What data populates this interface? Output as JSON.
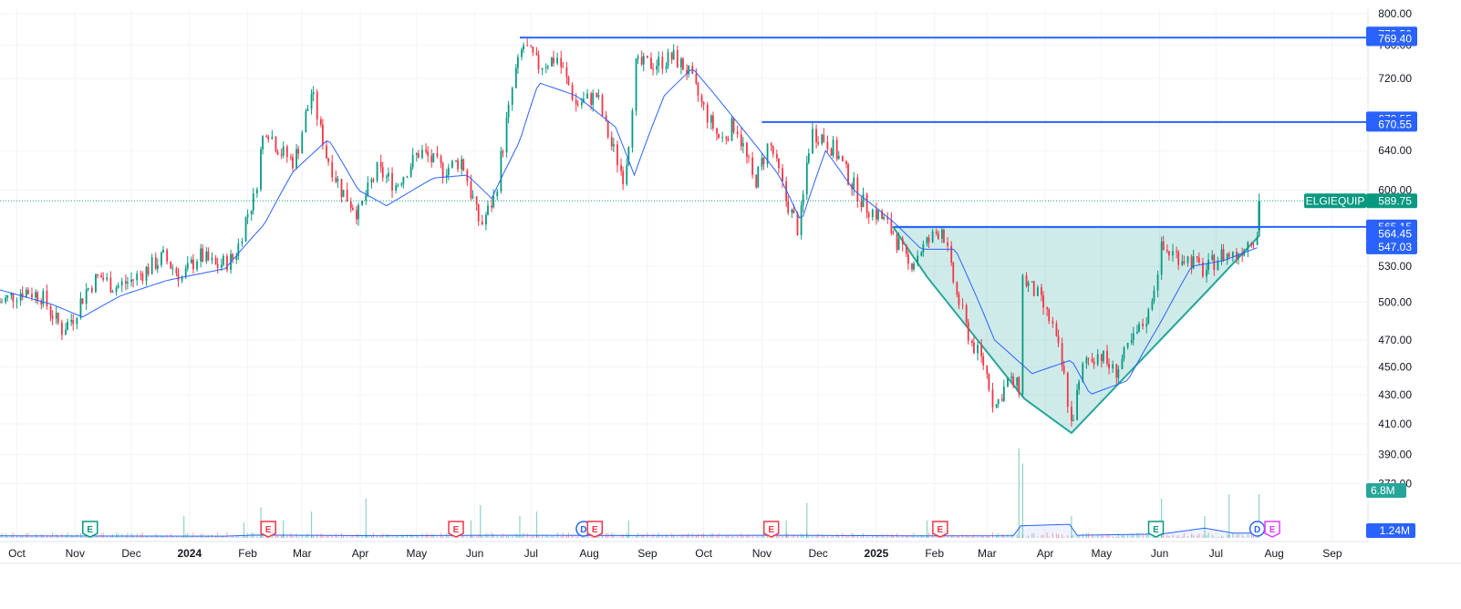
{
  "chart_data": {
    "type": "candlestick",
    "symbol": "ELGIEQUIP",
    "last_price": "589.75",
    "y_axis": {
      "scale": "log",
      "range": [
        356,
        806
      ],
      "ticks": [
        "800.00",
        "760.00",
        "720.00",
        "640.00",
        "600.00",
        "530.00",
        "500.00",
        "470.00",
        "450.00",
        "430.00",
        "410.00",
        "390.00",
        "372.00"
      ]
    },
    "x_axis": {
      "range": [
        "2023-09-22",
        "2025-09-20"
      ],
      "ticks": [
        {
          "label": "Oct",
          "date": "2023-10-01",
          "bold": false
        },
        {
          "label": "Nov",
          "date": "2023-11-01",
          "bold": false
        },
        {
          "label": "Dec",
          "date": "2023-12-01",
          "bold": false
        },
        {
          "label": "2024",
          "date": "2024-01-01",
          "bold": true
        },
        {
          "label": "Feb",
          "date": "2024-02-01",
          "bold": false
        },
        {
          "label": "Mar",
          "date": "2024-03-01",
          "bold": false
        },
        {
          "label": "Apr",
          "date": "2024-04-01",
          "bold": false
        },
        {
          "label": "May",
          "date": "2024-05-01",
          "bold": false
        },
        {
          "label": "Jun",
          "date": "2024-06-01",
          "bold": false
        },
        {
          "label": "Jul",
          "date": "2024-07-01",
          "bold": false
        },
        {
          "label": "Aug",
          "date": "2024-08-01",
          "bold": false
        },
        {
          "label": "Sep",
          "date": "2024-09-01",
          "bold": false
        },
        {
          "label": "Oct",
          "date": "2024-10-01",
          "bold": false
        },
        {
          "label": "Nov",
          "date": "2024-11-01",
          "bold": false
        },
        {
          "label": "Dec",
          "date": "2024-12-01",
          "bold": false
        },
        {
          "label": "2025",
          "date": "2025-01-01",
          "bold": true
        },
        {
          "label": "Feb",
          "date": "2025-02-01",
          "bold": false
        },
        {
          "label": "Mar",
          "date": "2025-03-01",
          "bold": false
        },
        {
          "label": "Apr",
          "date": "2025-04-01",
          "bold": false
        },
        {
          "label": "May",
          "date": "2025-05-01",
          "bold": false
        },
        {
          "label": "Jun",
          "date": "2025-06-01",
          "bold": false
        },
        {
          "label": "Jul",
          "date": "2025-07-01",
          "bold": false
        },
        {
          "label": "Aug",
          "date": "2025-08-01",
          "bold": false
        },
        {
          "label": "Sep",
          "date": "2025-09-01",
          "bold": false
        }
      ]
    },
    "price_tags": [
      {
        "label": "770.50",
        "value": 774,
        "color": "#2962ff"
      },
      {
        "label": "769.40",
        "value": 768,
        "color": "#2962ff"
      },
      {
        "label": "670.55",
        "value": 674,
        "color": "#2962ff"
      },
      {
        "label": "670.55",
        "value": 668,
        "color": "#2962ff"
      },
      {
        "label": "565.15",
        "value": 565.15,
        "color": "#2962ff"
      },
      {
        "label": "564.45",
        "value": 559,
        "color": "#2962ff"
      },
      {
        "label": "547.03",
        "value": 547.03,
        "color": "#2962ff"
      }
    ],
    "horizontal_lines": [
      {
        "value": 769.4,
        "from": "2024-06-25",
        "color": "#2962ff"
      },
      {
        "value": 670.55,
        "from": "2024-11-01",
        "color": "#2962ff"
      },
      {
        "value": 565.15,
        "from": "2025-01-10",
        "color": "#2962ff"
      }
    ],
    "pattern": {
      "color": "#26a69a",
      "fill": "rgba(38,166,154,0.22)",
      "points": [
        {
          "date": "2025-01-10",
          "value": 565
        },
        {
          "date": "2025-01-28",
          "value": 521
        },
        {
          "date": "2025-03-21",
          "value": 427
        },
        {
          "date": "2025-04-15",
          "value": 404
        },
        {
          "date": "2025-06-25",
          "value": 507
        },
        {
          "date": "2025-07-24",
          "value": 557
        },
        {
          "date": "2025-07-24",
          "value": 565
        }
      ]
    },
    "price_path": [
      [
        "2023-09-22",
        500
      ],
      [
        "2023-10-05",
        510
      ],
      [
        "2023-10-14",
        505
      ],
      [
        "2023-10-20",
        490
      ],
      [
        "2023-10-25",
        478
      ],
      [
        "2023-10-31",
        488
      ],
      [
        "2023-11-07",
        510
      ],
      [
        "2023-11-14",
        522
      ],
      [
        "2023-11-22",
        512
      ],
      [
        "2023-12-01",
        518
      ],
      [
        "2023-12-10",
        528
      ],
      [
        "2023-12-18",
        538
      ],
      [
        "2023-12-28",
        520
      ],
      [
        "2024-01-06",
        540
      ],
      [
        "2024-01-15",
        530
      ],
      [
        "2024-01-25",
        537
      ],
      [
        "2024-02-01",
        578
      ],
      [
        "2024-02-05",
        595
      ],
      [
        "2024-02-10",
        668
      ],
      [
        "2024-02-18",
        640
      ],
      [
        "2024-02-26",
        628
      ],
      [
        "2024-03-06",
        703
      ],
      [
        "2024-03-14",
        635
      ],
      [
        "2024-03-22",
        600
      ],
      [
        "2024-03-31",
        578
      ],
      [
        "2024-04-10",
        620
      ],
      [
        "2024-04-20",
        605
      ],
      [
        "2024-05-03",
        640
      ],
      [
        "2024-05-15",
        620
      ],
      [
        "2024-05-25",
        630
      ],
      [
        "2024-06-04",
        565
      ],
      [
        "2024-06-12",
        595
      ],
      [
        "2024-06-22",
        720
      ],
      [
        "2024-06-27",
        760
      ],
      [
        "2024-07-05",
        735
      ],
      [
        "2024-07-15",
        745
      ],
      [
        "2024-07-25",
        690
      ],
      [
        "2024-08-05",
        700
      ],
      [
        "2024-08-12",
        650
      ],
      [
        "2024-08-20",
        610
      ],
      [
        "2024-08-26",
        735
      ],
      [
        "2024-09-06",
        738
      ],
      [
        "2024-09-15",
        745
      ],
      [
        "2024-09-22",
        730
      ],
      [
        "2024-10-01",
        685
      ],
      [
        "2024-10-10",
        650
      ],
      [
        "2024-10-18",
        670
      ],
      [
        "2024-10-28",
        605
      ],
      [
        "2024-11-05",
        650
      ],
      [
        "2024-11-14",
        590
      ],
      [
        "2024-11-21",
        560
      ],
      [
        "2024-11-27",
        660
      ],
      [
        "2024-12-03",
        655
      ],
      [
        "2024-12-10",
        640
      ],
      [
        "2024-12-18",
        610
      ],
      [
        "2024-12-26",
        585
      ],
      [
        "2025-01-03",
        575
      ],
      [
        "2025-01-10",
        560
      ],
      [
        "2025-01-18",
        530
      ],
      [
        "2025-01-25",
        545
      ],
      [
        "2025-02-05",
        565
      ],
      [
        "2025-02-12",
        510
      ],
      [
        "2025-02-20",
        470
      ],
      [
        "2025-02-28",
        450
      ],
      [
        "2025-03-05",
        420
      ],
      [
        "2025-03-12",
        440
      ],
      [
        "2025-03-18",
        435
      ],
      [
        "2025-03-20",
        520
      ],
      [
        "2025-03-28",
        505
      ],
      [
        "2025-04-05",
        480
      ],
      [
        "2025-04-10",
        450
      ],
      [
        "2025-04-15",
        410
      ],
      [
        "2025-04-22",
        455
      ],
      [
        "2025-04-30",
        460
      ],
      [
        "2025-05-08",
        445
      ],
      [
        "2025-05-18",
        470
      ],
      [
        "2025-05-26",
        490
      ],
      [
        "2025-06-02",
        545
      ],
      [
        "2025-06-10",
        540
      ],
      [
        "2025-06-18",
        535
      ],
      [
        "2025-06-25",
        525
      ],
      [
        "2025-07-03",
        540
      ],
      [
        "2025-07-12",
        540
      ],
      [
        "2025-07-18",
        552
      ],
      [
        "2025-07-23",
        560
      ],
      [
        "2025-07-24",
        589.75
      ]
    ],
    "ma_path": [
      [
        "2023-09-22",
        510
      ],
      [
        "2023-10-20",
        498
      ],
      [
        "2023-11-05",
        488
      ],
      [
        "2023-11-25",
        505
      ],
      [
        "2023-12-20",
        518
      ],
      [
        "2024-01-20",
        528
      ],
      [
        "2024-02-10",
        568
      ],
      [
        "2024-02-25",
        618
      ],
      [
        "2024-03-15",
        652
      ],
      [
        "2024-03-31",
        600
      ],
      [
        "2024-04-15",
        585
      ],
      [
        "2024-05-10",
        612
      ],
      [
        "2024-05-28",
        615
      ],
      [
        "2024-06-10",
        592
      ],
      [
        "2024-06-25",
        650
      ],
      [
        "2024-07-05",
        715
      ],
      [
        "2024-07-25",
        700
      ],
      [
        "2024-08-15",
        665
      ],
      [
        "2024-08-25",
        615
      ],
      [
        "2024-09-10",
        700
      ],
      [
        "2024-09-25",
        732
      ],
      [
        "2024-10-15",
        680
      ],
      [
        "2024-10-31",
        640
      ],
      [
        "2024-11-10",
        615
      ],
      [
        "2024-11-22",
        570
      ],
      [
        "2024-12-05",
        640
      ],
      [
        "2024-12-20",
        600
      ],
      [
        "2025-01-10",
        570
      ],
      [
        "2025-01-25",
        545
      ],
      [
        "2025-02-12",
        545
      ],
      [
        "2025-03-05",
        470
      ],
      [
        "2025-03-25",
        445
      ],
      [
        "2025-04-15",
        455
      ],
      [
        "2025-04-25",
        430
      ],
      [
        "2025-05-15",
        440
      ],
      [
        "2025-06-02",
        485
      ],
      [
        "2025-06-18",
        530
      ],
      [
        "2025-07-05",
        535
      ],
      [
        "2025-07-24",
        547
      ]
    ],
    "volume_panel": {
      "avg_label": "1.24M",
      "last_label": "6.8M",
      "spikes": [
        [
          "2023-12-29",
          0.5
        ],
        [
          "2024-01-30",
          0.35
        ],
        [
          "2024-02-08",
          0.7
        ],
        [
          "2024-02-20",
          0.4
        ],
        [
          "2024-03-06",
          0.6
        ],
        [
          "2024-04-04",
          0.9
        ],
        [
          "2024-05-30",
          0.4
        ],
        [
          "2024-06-04",
          0.75
        ],
        [
          "2024-06-25",
          0.5
        ],
        [
          "2024-07-04",
          0.6
        ],
        [
          "2024-08-22",
          0.4
        ],
        [
          "2024-11-14",
          0.4
        ],
        [
          "2024-11-25",
          0.8
        ],
        [
          "2025-01-28",
          0.4
        ],
        [
          "2025-03-18",
          2.2
        ],
        [
          "2025-03-20",
          1.7
        ],
        [
          "2025-04-15",
          0.5
        ],
        [
          "2025-06-02",
          0.9
        ],
        [
          "2025-06-25",
          0.5
        ],
        [
          "2025-07-08",
          1.0
        ],
        [
          "2025-07-24",
          1.0
        ]
      ],
      "avg_path": [
        [
          "2023-09-22",
          0.09
        ],
        [
          "2024-01-20",
          0.08
        ],
        [
          "2024-02-05",
          0.13
        ],
        [
          "2024-04-10",
          0.1
        ],
        [
          "2024-06-20",
          0.12
        ],
        [
          "2024-08-20",
          0.11
        ],
        [
          "2024-11-10",
          0.12
        ],
        [
          "2025-01-20",
          0.09
        ],
        [
          "2025-03-15",
          0.1
        ],
        [
          "2025-03-19",
          0.55
        ],
        [
          "2025-04-14",
          0.62
        ],
        [
          "2025-04-18",
          0.12
        ],
        [
          "2025-06-02",
          0.18
        ],
        [
          "2025-06-25",
          0.45
        ],
        [
          "2025-07-10",
          0.22
        ],
        [
          "2025-07-24",
          0.22
        ]
      ]
    },
    "events": [
      {
        "date": "2023-11-09",
        "label": "E",
        "color": "#089981",
        "shape": "shield"
      },
      {
        "date": "2024-02-12",
        "label": "E",
        "color": "#f23645",
        "shape": "shield"
      },
      {
        "date": "2024-05-22",
        "label": "E",
        "color": "#f23645",
        "shape": "shield"
      },
      {
        "date": "2024-07-29",
        "label": "D",
        "color": "#2962ff",
        "shape": "circle"
      },
      {
        "date": "2024-08-04",
        "label": "E",
        "color": "#f23645",
        "shape": "shield"
      },
      {
        "date": "2024-11-06",
        "label": "E",
        "color": "#f23645",
        "shape": "shield"
      },
      {
        "date": "2025-02-04",
        "label": "E",
        "color": "#f23645",
        "shape": "shield"
      },
      {
        "date": "2025-05-30",
        "label": "E",
        "color": "#089981",
        "shape": "shield"
      },
      {
        "date": "2025-07-23",
        "label": "D",
        "color": "#2962ff",
        "shape": "circle"
      },
      {
        "date": "2025-07-31",
        "label": "E",
        "color": "#e040fb",
        "shape": "shield"
      }
    ]
  }
}
